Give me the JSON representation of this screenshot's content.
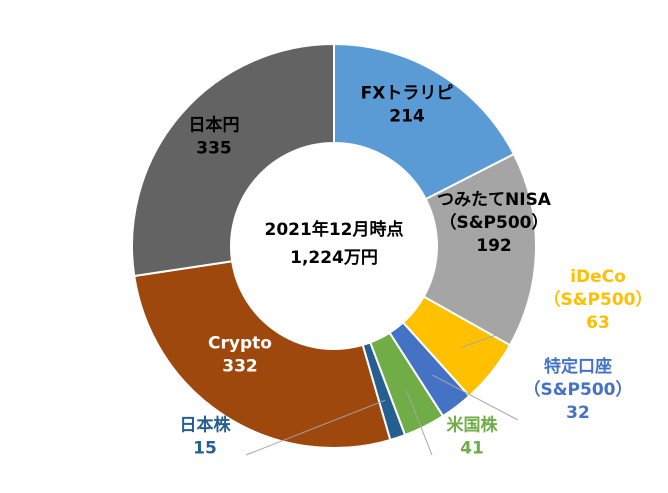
{
  "chart_data": {
    "type": "pie",
    "subtype": "donut",
    "center_label": [
      "2021年12月時点",
      "1,224万円"
    ],
    "slices": [
      {
        "label": "FXトラリピ",
        "value": 214,
        "color": "#5b9bd5",
        "label_color": "#000000",
        "leader": false
      },
      {
        "label": "つみたてNISA\n（S&P500）",
        "value": 192,
        "color": "#a5a5a5",
        "label_color": "#000000",
        "leader": false
      },
      {
        "label": "iDeCo\n（S&P500）",
        "value": 63,
        "color": "#ffc000",
        "label_color": "#ffc000",
        "leader": true
      },
      {
        "label": "特定口座\n（S&P500）",
        "value": 32,
        "color": "#4472c4",
        "label_color": "#4472c4",
        "leader": true
      },
      {
        "label": "米国株",
        "value": 41,
        "color": "#70ad47",
        "label_color": "#70ad47",
        "leader": true
      },
      {
        "label": "日本株",
        "value": 15,
        "color": "#255e91",
        "label_color": "#255e91",
        "leader": true
      },
      {
        "label": "Crypto",
        "value": 332,
        "color": "#9e480e",
        "label_color": "#ffffff",
        "leader": false
      },
      {
        "label": "日本円",
        "value": 335,
        "color": "#636363",
        "label_color": "#000000",
        "leader": false
      }
    ]
  }
}
